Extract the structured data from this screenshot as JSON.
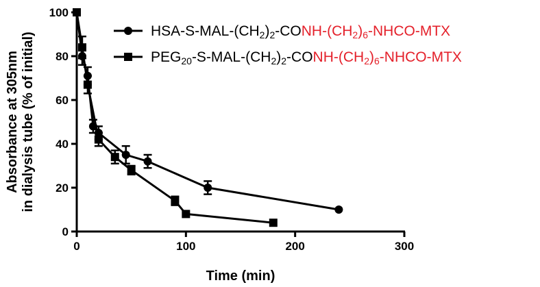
{
  "chart_data": {
    "type": "line",
    "xlabel": "Time (min)",
    "ylabel_lines": [
      "Absorbance at 305nm",
      "in dialysis tube (% of initial)"
    ],
    "xlim": [
      0,
      300
    ],
    "ylim": [
      0,
      100
    ],
    "x_ticks": [
      0,
      100,
      200,
      300
    ],
    "y_ticks": [
      0,
      20,
      40,
      60,
      80,
      100
    ],
    "grid": false,
    "legend_position": "top-right",
    "series": [
      {
        "name_parts": [
          {
            "text": "HSA-S-MAL-(CH",
            "color": "black"
          },
          {
            "text": "2",
            "color": "black",
            "sub": true
          },
          {
            "text": ")",
            "color": "black"
          },
          {
            "text": "2",
            "color": "black",
            "sub": true
          },
          {
            "text": "-CO",
            "color": "black"
          },
          {
            "text": "NH-(CH",
            "color": "red"
          },
          {
            "text": "2",
            "color": "red",
            "sub": true
          },
          {
            "text": ")",
            "color": "red"
          },
          {
            "text": "6",
            "color": "red",
            "sub": true
          },
          {
            "text": "-NHCO-MTX",
            "color": "red"
          }
        ],
        "marker": "circle",
        "points": [
          {
            "x": 0,
            "y": 100
          },
          {
            "x": 5,
            "y": 80,
            "err": 4
          },
          {
            "x": 10,
            "y": 71,
            "err": 4
          },
          {
            "x": 15,
            "y": 48,
            "err": 3
          },
          {
            "x": 20,
            "y": 45,
            "err": 3
          },
          {
            "x": 45,
            "y": 35,
            "err": 4
          },
          {
            "x": 65,
            "y": 32,
            "err": 3
          },
          {
            "x": 120,
            "y": 20,
            "err": 3
          },
          {
            "x": 240,
            "y": 10
          }
        ]
      },
      {
        "name_parts": [
          {
            "text": "PEG",
            "color": "black"
          },
          {
            "text": "20",
            "color": "black",
            "sub": true
          },
          {
            "text": "-S-MAL-(CH",
            "color": "black"
          },
          {
            "text": "2",
            "color": "black",
            "sub": true
          },
          {
            "text": ")",
            "color": "black"
          },
          {
            "text": "2",
            "color": "black",
            "sub": true
          },
          {
            "text": "-CO",
            "color": "black"
          },
          {
            "text": "NH-(CH",
            "color": "red"
          },
          {
            "text": "2",
            "color": "red",
            "sub": true
          },
          {
            "text": ")",
            "color": "red"
          },
          {
            "text": "6",
            "color": "red",
            "sub": true
          },
          {
            "text": "-NHCO-MTX",
            "color": "red"
          }
        ],
        "marker": "square",
        "points": [
          {
            "x": 0,
            "y": 100
          },
          {
            "x": 5,
            "y": 84,
            "err": 5
          },
          {
            "x": 10,
            "y": 67,
            "err": 4
          },
          {
            "x": 20,
            "y": 42,
            "err": 3
          },
          {
            "x": 35,
            "y": 34,
            "err": 3
          },
          {
            "x": 50,
            "y": 28,
            "err": 2
          },
          {
            "x": 90,
            "y": 14,
            "err": 2
          },
          {
            "x": 100,
            "y": 8
          },
          {
            "x": 180,
            "y": 4
          }
        ]
      }
    ]
  }
}
